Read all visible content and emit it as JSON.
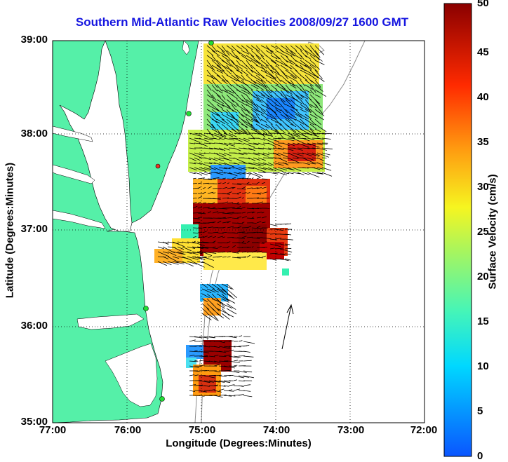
{
  "title": "Southern Mid-Atlantic Raw Velocities 2008/09/27 1600 GMT",
  "xlabel": "Longitude (Degrees:Minutes)",
  "ylabel": "Latitude (Degrees:Minutes)",
  "colorbar": {
    "label": "Surface Velocity (cm/s)",
    "ticks": [
      "0",
      "5",
      "10",
      "15",
      "20",
      "25",
      "30",
      "35",
      "40",
      "45",
      "50"
    ],
    "range": [
      0,
      50
    ]
  },
  "x_ticks": [
    "77:00",
    "76:00",
    "75:00",
    "74:00",
    "73:00",
    "72:00"
  ],
  "y_ticks": [
    "39:00",
    "38:00",
    "37:00",
    "36:00",
    "35:00"
  ],
  "colors": {
    "land": "#55f0a8",
    "title": "#1515e0",
    "station": "#22dd33",
    "station_red": "#ee3322"
  }
}
